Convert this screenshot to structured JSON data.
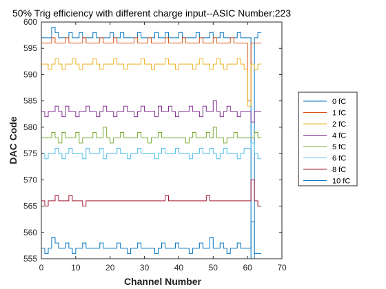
{
  "chart_data": {
    "type": "line",
    "step": true,
    "title": "50% Trig efficiency with different charge input--ASIC Number:223",
    "xlabel": "Channel Number",
    "ylabel": "DAC Code",
    "xlim": [
      0,
      70
    ],
    "ylim": [
      555,
      600
    ],
    "xticks": [
      "0",
      "10",
      "20",
      "30",
      "40",
      "50",
      "60",
      "70"
    ],
    "yticks": [
      "555",
      "560",
      "565",
      "570",
      "575",
      "580",
      "585",
      "590",
      "595",
      "600"
    ],
    "grid": false,
    "legend_position": "right",
    "series": [
      {
        "name": "0 fC",
        "color": "#0072BD",
        "values": [
          597,
          597,
          597,
          599,
          598,
          597,
          597,
          597,
          598,
          597,
          597,
          598,
          597,
          597,
          597,
          598,
          597,
          597,
          597,
          597,
          598,
          597,
          597,
          598,
          597,
          597,
          597,
          597,
          598,
          597,
          597,
          597,
          597,
          598,
          597,
          597,
          598,
          597,
          597,
          597,
          598,
          597,
          597,
          597,
          597,
          598,
          597,
          597,
          597,
          598,
          597,
          597,
          598,
          597,
          597,
          597,
          597,
          598,
          597,
          597,
          597,
          555,
          597,
          598
        ]
      },
      {
        "name": "1 fC",
        "color": "#D95319",
        "values": [
          596,
          596,
          596,
          597,
          596,
          596,
          596,
          597,
          596,
          596,
          596,
          596,
          597,
          596,
          596,
          596,
          596,
          597,
          596,
          596,
          596,
          597,
          596,
          596,
          596,
          596,
          596,
          597,
          596,
          596,
          596,
          597,
          596,
          596,
          596,
          596,
          597,
          596,
          596,
          596,
          596,
          597,
          596,
          596,
          596,
          596,
          597,
          596,
          596,
          596,
          597,
          596,
          596,
          596,
          596,
          597,
          596,
          596,
          596,
          596,
          585,
          596,
          596,
          596
        ]
      },
      {
        "name": "2 fC",
        "color": "#EDB120",
        "values": [
          592,
          592,
          591,
          592,
          593,
          592,
          591,
          592,
          592,
          593,
          592,
          591,
          592,
          592,
          592,
          593,
          592,
          591,
          592,
          592,
          592,
          593,
          592,
          592,
          591,
          592,
          592,
          592,
          592,
          593,
          592,
          592,
          591,
          592,
          592,
          592,
          593,
          592,
          592,
          591,
          592,
          592,
          592,
          592,
          591,
          592,
          593,
          592,
          592,
          591,
          592,
          593,
          592,
          591,
          592,
          592,
          592,
          593,
          592,
          591,
          584,
          592,
          591,
          592
        ]
      },
      {
        "name": "4 fC",
        "color": "#7E2F8E",
        "values": [
          583,
          582,
          583,
          583,
          584,
          583,
          582,
          584,
          583,
          583,
          582,
          583,
          583,
          584,
          583,
          583,
          582,
          583,
          584,
          583,
          583,
          582,
          583,
          583,
          584,
          583,
          583,
          582,
          583,
          584,
          583,
          583,
          583,
          582,
          584,
          583,
          583,
          584,
          583,
          582,
          583,
          583,
          583,
          584,
          583,
          583,
          582,
          584,
          583,
          583,
          585,
          583,
          582,
          583,
          584,
          583,
          583,
          582,
          583,
          583,
          583,
          581,
          583,
          583
        ]
      },
      {
        "name": "5 fC",
        "color": "#77AC30",
        "values": [
          578,
          578,
          578,
          579,
          578,
          577,
          579,
          578,
          578,
          578,
          579,
          577,
          578,
          578,
          578,
          579,
          578,
          578,
          580,
          578,
          577,
          578,
          578,
          579,
          578,
          578,
          578,
          578,
          579,
          578,
          578,
          577,
          578,
          578,
          579,
          578,
          578,
          578,
          578,
          578,
          578,
          578,
          577,
          578,
          579,
          578,
          578,
          578,
          579,
          578,
          580,
          578,
          578,
          577,
          578,
          578,
          579,
          578,
          578,
          578,
          578,
          578,
          579,
          578
        ]
      },
      {
        "name": "6 fC",
        "color": "#4DBEEE",
        "values": [
          575,
          574,
          575,
          575,
          576,
          575,
          574,
          575,
          576,
          575,
          575,
          575,
          574,
          576,
          575,
          575,
          575,
          576,
          574,
          575,
          575,
          575,
          576,
          575,
          575,
          574,
          575,
          575,
          576,
          575,
          575,
          575,
          575,
          574,
          575,
          576,
          575,
          575,
          575,
          576,
          575,
          575,
          575,
          574,
          575,
          575,
          576,
          575,
          575,
          576,
          575,
          574,
          575,
          576,
          575,
          575,
          575,
          574,
          575,
          576,
          576,
          577,
          575,
          574
        ]
      },
      {
        "name": "8 fC",
        "color": "#A2142F",
        "values": [
          566,
          565,
          566,
          566,
          567,
          566,
          566,
          566,
          567,
          566,
          566,
          566,
          565,
          566,
          566,
          566,
          566,
          566,
          566,
          566,
          566,
          566,
          566,
          566,
          566,
          566,
          566,
          566,
          566,
          566,
          566,
          566,
          566,
          566,
          566,
          566,
          567,
          566,
          566,
          566,
          566,
          566,
          566,
          566,
          566,
          566,
          566,
          566,
          567,
          566,
          566,
          566,
          566,
          566,
          566,
          566,
          566,
          566,
          566,
          566,
          566,
          570,
          566,
          565
        ]
      },
      {
        "name": "10 fC",
        "color": "#0072BD",
        "values": [
          557,
          556,
          557,
          559,
          558,
          557,
          557,
          558,
          557,
          556,
          557,
          557,
          558,
          557,
          557,
          557,
          557,
          558,
          557,
          557,
          557,
          557,
          558,
          557,
          557,
          556,
          557,
          557,
          558,
          557,
          557,
          557,
          557,
          556,
          557,
          558,
          557,
          557,
          557,
          558,
          557,
          557,
          557,
          556,
          557,
          557,
          558,
          557,
          557,
          559,
          557,
          557,
          558,
          557,
          556,
          557,
          557,
          558,
          557,
          557,
          557,
          562,
          556,
          556
        ]
      }
    ]
  }
}
